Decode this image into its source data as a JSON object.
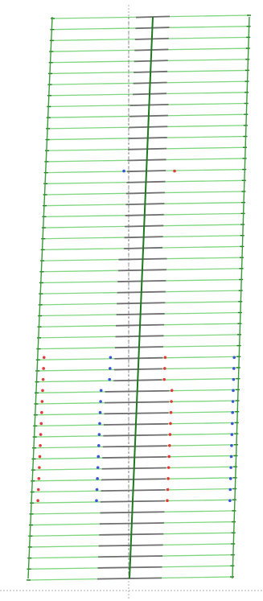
{
  "figure": {
    "kind": "structural-wall-deformation-diagram",
    "floor_count": 52,
    "reference_floor_index": 14
  },
  "colors": {
    "background": "#ffffff",
    "edge_members": "#3a9b3a",
    "floor_beam": "#7ed67e",
    "core_member": "#6f6f6f",
    "core_axis": "#1e7a1e",
    "axis_guide": "#9a9a9a",
    "marker_red": "#e23a3a",
    "marker_blue": "#3a54d6"
  },
  "markers": {
    "red": {
      "count": 14,
      "shape": "small-dot",
      "columns": [
        "left-edge",
        "inner-right"
      ]
    },
    "blue": {
      "count": 14,
      "shape": "small-dot",
      "columns": [
        "inner-left",
        "right-edge"
      ]
    },
    "reference_pair": [
      "blue",
      "red"
    ]
  }
}
